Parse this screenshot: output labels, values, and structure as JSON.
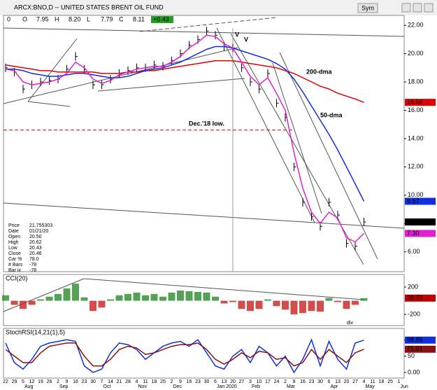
{
  "window": {
    "title": "ARCX:BNO,D -- UNITED STATES BRENT OIL FUND",
    "sym": "Sym"
  },
  "quote": {
    "fields": [
      {
        "name": "O",
        "value": "7.95"
      },
      {
        "name": "H",
        "value": "8.20"
      },
      {
        "name": "L",
        "value": "7.79"
      },
      {
        "name": "C",
        "value": "8.11"
      }
    ],
    "change": "+0.43",
    "lead": "0"
  },
  "data_box": [
    [
      "Price",
      "21.755303"
    ],
    [
      "Date",
      "01/21/20"
    ],
    [
      "Open",
      "20.50"
    ],
    [
      "High",
      "20.62"
    ],
    [
      "Low",
      "20.43"
    ],
    [
      "Close",
      "20.46"
    ],
    [
      "Car %",
      "78.0"
    ],
    [
      "# Bars",
      "-78"
    ],
    [
      "Bar ix",
      "-78"
    ]
  ],
  "chart_data": [
    {
      "type": "line",
      "categories": [
        "22",
        "29",
        "5",
        "12",
        "19",
        "26",
        "2",
        "9",
        "16",
        "23",
        "30",
        "7",
        "14",
        "21",
        "28",
        "4",
        "11",
        "18",
        "25",
        "2",
        "9",
        "16",
        "23",
        "30",
        "6",
        "13",
        "20",
        "27",
        "3",
        "10",
        "17",
        "24",
        "2",
        "9",
        "16",
        "23",
        "30",
        "6",
        "13",
        "20",
        "27",
        "4",
        "11",
        "18",
        "25",
        "1"
      ],
      "months": [
        "Aug",
        "Sep",
        "Oct",
        "Nov",
        "Dec",
        "Jan 2020",
        "Feb",
        "Mar",
        "Apr",
        "May",
        "Jun"
      ],
      "ylim": [
        4.6,
        22.7
      ],
      "yticks": [
        {
          "value": 6,
          "label": "6.00"
        },
        {
          "value": 8,
          "label": "8.00"
        },
        {
          "value": 10,
          "label": "10.00"
        },
        {
          "value": 12,
          "label": "12.00"
        },
        {
          "value": 14,
          "label": "14.00"
        },
        {
          "value": 16,
          "label": "16.00"
        },
        {
          "value": 18,
          "label": "18.00"
        },
        {
          "value": 20,
          "label": "20.00"
        },
        {
          "value": 22,
          "label": "22.00"
        }
      ],
      "series": [
        {
          "name": "Price",
          "color": "#000000",
          "style": "bars",
          "values": [
            19.0,
            18.7,
            17.5,
            17.8,
            18.0,
            18.1,
            18.2,
            18.9,
            19.8,
            18.9,
            17.8,
            17.8,
            18.2,
            18.6,
            18.8,
            19.0,
            19.0,
            19.2,
            19.1,
            19.5,
            20.0,
            20.6,
            21.0,
            21.6,
            21.3,
            20.5,
            20.4,
            19.0,
            18.0,
            17.5,
            18.6,
            16.5,
            15.5,
            12.0,
            9.5,
            8.5,
            7.8,
            9.5,
            8.6,
            6.6,
            6.4,
            8.11,
            null,
            null,
            null,
            null
          ]
        },
        {
          "name": "200-dma",
          "color": "#e00000",
          "values": [
            19.2,
            19.1,
            19.0,
            18.9,
            18.8,
            18.8,
            18.7,
            18.7,
            18.7,
            18.7,
            18.7,
            18.6,
            18.6,
            18.6,
            18.7,
            18.7,
            18.8,
            18.8,
            18.9,
            19.0,
            19.1,
            19.2,
            19.3,
            19.4,
            19.5,
            19.5,
            19.5,
            19.4,
            19.3,
            19.2,
            19.1,
            19.0,
            18.8,
            18.6,
            18.3,
            18.0,
            17.7,
            17.5,
            17.2,
            17.0,
            16.8,
            16.56,
            null,
            null,
            null,
            null
          ]
        },
        {
          "name": "50-dma",
          "color": "#1030e0",
          "values": [
            18.9,
            18.9,
            18.8,
            18.6,
            18.5,
            18.4,
            18.4,
            18.5,
            18.6,
            18.6,
            18.5,
            18.4,
            18.3,
            18.3,
            18.4,
            18.6,
            18.8,
            18.9,
            19.0,
            19.2,
            19.4,
            19.7,
            20.0,
            20.3,
            20.5,
            20.5,
            20.4,
            20.2,
            20.0,
            19.8,
            19.6,
            19.3,
            18.9,
            18.2,
            17.3,
            16.3,
            15.3,
            14.3,
            13.2,
            12.0,
            10.8,
            9.57,
            null,
            null,
            null,
            null
          ]
        },
        {
          "name": "10-dma",
          "color": "#e020d0",
          "values": [
            18.9,
            18.8,
            18.0,
            17.8,
            17.9,
            18.0,
            18.2,
            18.6,
            19.4,
            19.0,
            18.2,
            17.9,
            18.1,
            18.5,
            18.7,
            18.9,
            19.0,
            19.1,
            19.1,
            19.4,
            19.8,
            20.4,
            20.8,
            21.3,
            21.2,
            20.7,
            20.4,
            19.4,
            18.4,
            17.8,
            18.3,
            17.2,
            16.0,
            13.0,
            10.5,
            8.8,
            8.0,
            8.8,
            8.4,
            7.0,
            6.7,
            7.3,
            null,
            null,
            null,
            null
          ],
          "value_labels": [
            null,
            null,
            null,
            null,
            null,
            null,
            null,
            null,
            null,
            null,
            null,
            null,
            null,
            null,
            null,
            null,
            null,
            null,
            null,
            null,
            null,
            null,
            null,
            null,
            null,
            null,
            null,
            null,
            null,
            null,
            null,
            null,
            null,
            null,
            null,
            null,
            null,
            null,
            null,
            null,
            null,
            "7.30",
            null,
            null,
            null,
            null
          ]
        }
      ],
      "hline": {
        "value": 14.6,
        "color": "#e00000"
      },
      "annotations": [
        {
          "text": "200-dma",
          "color": "#e00000"
        },
        {
          "text": "50-dma",
          "color": "#1030e0"
        },
        {
          "text": "Dec.'18 low.",
          "color": "#e00000"
        },
        {
          "text": "V",
          "color": "#1030e0"
        },
        {
          "text": "V",
          "color": "#e00000"
        }
      ]
    },
    {
      "type": "bar",
      "title": "CCI(20)",
      "ylim": [
        -364,
        385
      ],
      "yticks": [
        -200,
        200
      ],
      "positive_color": "#2a8a2a",
      "negative_color": "#c82020",
      "box_color": "#c00000",
      "values": [
        80,
        -60,
        -120,
        -60,
        20,
        60,
        100,
        180,
        250,
        50,
        -150,
        -100,
        20,
        80,
        100,
        120,
        80,
        100,
        60,
        120,
        150,
        140,
        130,
        120,
        60,
        -40,
        -20,
        -120,
        -150,
        -120,
        20,
        -80,
        -130,
        -200,
        -180,
        -150,
        -160,
        40,
        -20,
        -120,
        -60,
        38.79,
        null,
        null,
        null,
        null
      ],
      "annotations": [
        {
          "text": "div",
          "color": "#108010"
        }
      ]
    },
    {
      "type": "line",
      "title": "StochRSI(14,21(1),5)",
      "ylim": [
        -17.4,
        134.8
      ],
      "yticks": [
        {
          "value": 0,
          "label": "0.00"
        },
        50,
        100
      ],
      "series": [
        {
          "name": "StochRSI",
          "color": "#1030e0",
          "values": [
            90,
            30,
            10,
            40,
            80,
            90,
            95,
            100,
            95,
            20,
            0,
            10,
            60,
            90,
            85,
            70,
            40,
            60,
            80,
            90,
            95,
            80,
            100,
            60,
            20,
            10,
            50,
            70,
            30,
            80,
            60,
            20,
            50,
            0,
            40,
            100,
            20,
            95,
            40,
            10,
            90,
            98.86,
            null,
            null,
            null,
            null
          ]
        },
        {
          "name": "Signal",
          "color": "#8b1010",
          "values": [
            70,
            50,
            30,
            30,
            60,
            80,
            85,
            90,
            90,
            50,
            20,
            20,
            40,
            70,
            80,
            75,
            55,
            60,
            70,
            80,
            85,
            85,
            90,
            70,
            40,
            25,
            40,
            60,
            45,
            65,
            60,
            40,
            45,
            20,
            30,
            70,
            40,
            70,
            50,
            30,
            60,
            71.01,
            null,
            null,
            null,
            null
          ]
        }
      ]
    }
  ]
}
